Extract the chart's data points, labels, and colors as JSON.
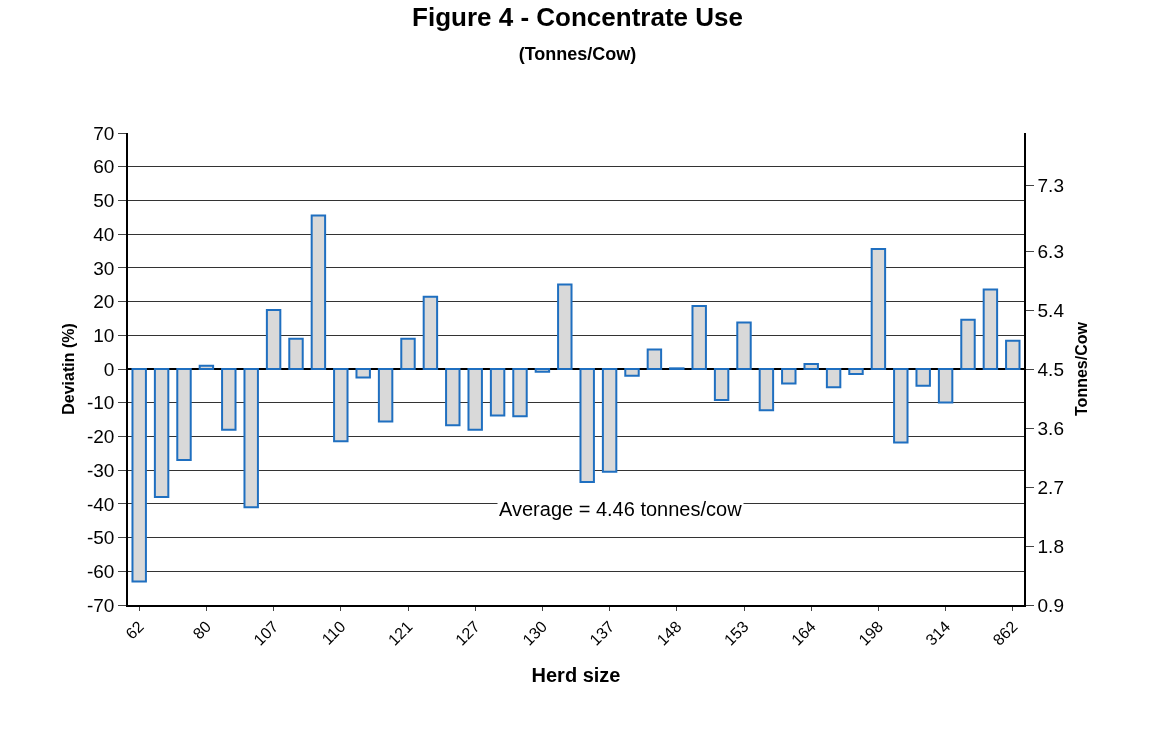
{
  "chart_data": {
    "type": "bar",
    "title": "Figure 4 - Concentrate Use",
    "subtitle": "(Tonnes/Cow)",
    "xlabel": "Herd size",
    "ylabel": "Deviatin (%)",
    "y2label": "Tonnes/Cow",
    "categories": [
      "62",
      null,
      null,
      "80",
      null,
      null,
      "107",
      null,
      null,
      "110",
      null,
      null,
      "121",
      null,
      null,
      "127",
      null,
      null,
      "130",
      null,
      null,
      "137",
      null,
      null,
      "148",
      null,
      null,
      "153",
      null,
      null,
      "164",
      null,
      null,
      "198",
      null,
      null,
      "314",
      null,
      null,
      "862"
    ],
    "values": [
      -63,
      -38,
      -27,
      1,
      -18,
      -41,
      17.5,
      9,
      45.5,
      -21.4,
      -2.5,
      -15.6,
      9,
      21.4,
      -16.7,
      -18,
      -13.8,
      -14,
      -0.8,
      25.1,
      -33.5,
      -30.5,
      -2,
      5.8,
      0.2,
      18.7,
      -9.2,
      13.8,
      -12.2,
      -4.3,
      1.5,
      -5.4,
      -1.5,
      35.6,
      -21.8,
      -5,
      -9.9,
      14.6,
      23.6,
      8.4
    ],
    "color": "#d9d9d9",
    "ylim": [
      -70,
      70
    ],
    "yticks": [
      -70,
      -60,
      -50,
      -40,
      -30,
      -20,
      -10,
      0,
      10,
      20,
      30,
      40,
      50,
      60,
      70
    ],
    "y2lim": [
      0.9,
      8.1
    ],
    "y2ticks": [
      0.9,
      1.8,
      2.7,
      3.6,
      4.5,
      5.4,
      6.3,
      7.3
    ],
    "grid": "y",
    "legend": false,
    "annotations": [
      "Average = 4.46 tonnes/cow"
    ]
  }
}
